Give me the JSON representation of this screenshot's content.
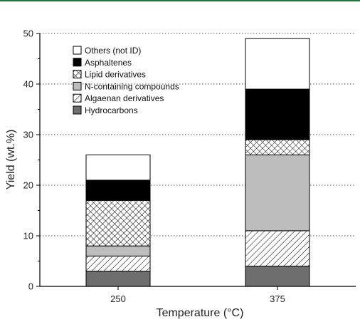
{
  "colors": {
    "top_rule": "#1a7a3a"
  },
  "chart_data": {
    "type": "bar",
    "stacked": true,
    "categories": [
      "250",
      "375"
    ],
    "xlabel": "Temperature (°C)",
    "ylabel": "Yield (wt.%)",
    "ylim": [
      0,
      50
    ],
    "yticks": [
      0,
      10,
      20,
      30,
      40,
      50
    ],
    "grid": "horizontal dotted",
    "legend_position": "top-left",
    "series": [
      {
        "name": "Hydrocarbons",
        "values": [
          3,
          4
        ],
        "fill": "solid",
        "color": "#6e6e6e"
      },
      {
        "name": "Algaenan derivatives",
        "values": [
          3,
          7
        ],
        "fill": "diagonal-hatch",
        "color": "#ffffff"
      },
      {
        "name": "N-containing compounds",
        "values": [
          2,
          15
        ],
        "fill": "solid",
        "color": "#bdbdbd"
      },
      {
        "name": "Lipid derivatives",
        "values": [
          9,
          3
        ],
        "fill": "crosshatch",
        "color": "#ffffff"
      },
      {
        "name": "Asphaltenes",
        "values": [
          4,
          10
        ],
        "fill": "solid",
        "color": "#000000"
      },
      {
        "name": "Others (not ID)",
        "values": [
          5,
          10
        ],
        "fill": "solid",
        "color": "#ffffff"
      }
    ],
    "legend_order": [
      "Others (not ID)",
      "Asphaltenes",
      "Lipid derivatives",
      "N-containing compounds",
      "Algaenan derivatives",
      "Hydrocarbons"
    ]
  }
}
